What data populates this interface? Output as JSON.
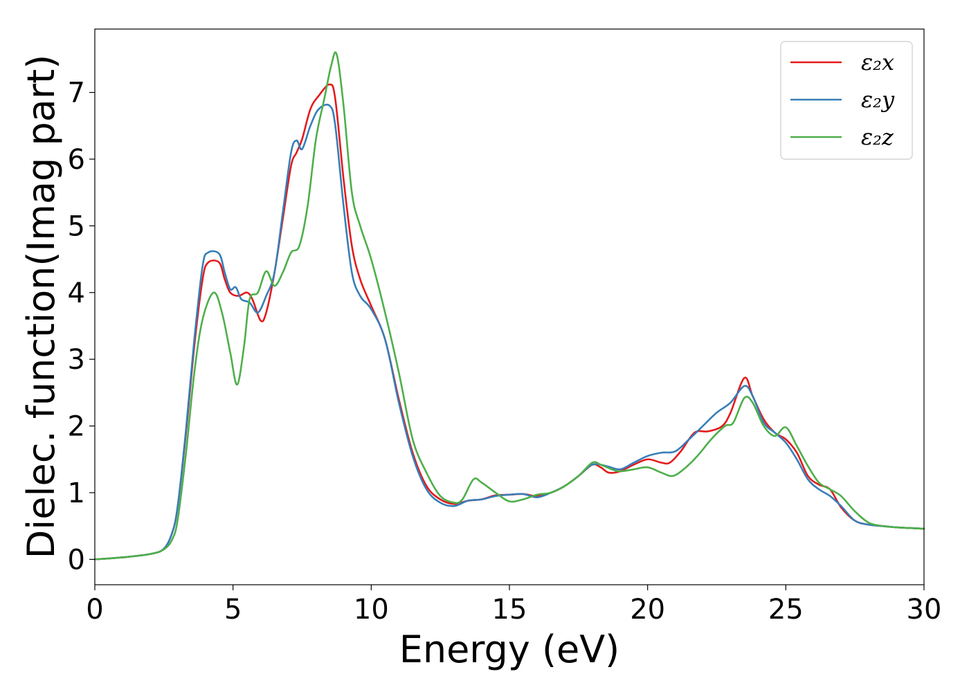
{
  "chart_data": {
    "type": "line",
    "title": "",
    "xlabel": "Energy (eV)",
    "ylabel": "Dielec. function(Imag part)",
    "xlim": [
      0,
      30
    ],
    "ylim": [
      -0.38,
      7.95
    ],
    "xticks": [
      0,
      5,
      10,
      15,
      20,
      25,
      30
    ],
    "yticks": [
      0,
      1,
      2,
      3,
      4,
      5,
      6,
      7
    ],
    "grid": false,
    "legend": {
      "placement": "top-right"
    },
    "series": [
      {
        "name": "ε₂x",
        "color": "#e41a1c",
        "x": [
          0,
          1,
          2,
          2.5,
          2.8,
          3,
          3.3,
          3.6,
          3.9,
          4.1,
          4.5,
          4.7,
          4.9,
          5.2,
          5.5,
          5.7,
          6.0,
          6.2,
          6.5,
          6.8,
          7.1,
          7.3,
          7.5,
          7.8,
          8.1,
          8.5,
          8.7,
          9.0,
          9.3,
          9.6,
          10.0,
          10.5,
          11.0,
          11.5,
          12.0,
          12.5,
          13.0,
          13.5,
          14.0,
          14.5,
          15.0,
          15.5,
          16.0,
          16.5,
          17.0,
          17.5,
          18.0,
          18.3,
          18.6,
          19.0,
          19.5,
          20.0,
          20.5,
          20.8,
          21.2,
          21.7,
          22.2,
          22.7,
          23.0,
          23.5,
          23.8,
          24.2,
          24.6,
          25.0,
          25.4,
          25.8,
          26.2,
          26.6,
          27.0,
          27.5,
          28.0,
          28.5,
          29.0,
          29.5,
          30.0
        ],
        "y": [
          0,
          0.03,
          0.08,
          0.16,
          0.4,
          0.8,
          1.9,
          3.2,
          4.2,
          4.45,
          4.45,
          4.2,
          4.0,
          3.95,
          4.0,
          3.9,
          3.58,
          3.7,
          4.3,
          5.1,
          5.9,
          6.1,
          6.3,
          6.75,
          6.95,
          7.12,
          6.9,
          5.7,
          4.7,
          4.2,
          3.8,
          3.3,
          2.4,
          1.6,
          1.1,
          0.9,
          0.83,
          0.88,
          0.9,
          0.96,
          0.97,
          0.98,
          0.95,
          1.0,
          1.1,
          1.25,
          1.42,
          1.38,
          1.3,
          1.32,
          1.42,
          1.5,
          1.45,
          1.45,
          1.62,
          1.9,
          1.92,
          2.0,
          2.2,
          2.72,
          2.45,
          2.1,
          1.9,
          1.8,
          1.6,
          1.25,
          1.12,
          1.05,
          0.78,
          0.58,
          0.52,
          0.5,
          0.48,
          0.47,
          0.46
        ]
      },
      {
        "name": "ε₂y",
        "color": "#377eb8",
        "x": [
          0,
          1,
          2,
          2.5,
          2.8,
          3,
          3.3,
          3.6,
          3.9,
          4.1,
          4.5,
          4.7,
          4.9,
          5.1,
          5.3,
          5.6,
          5.9,
          6.2,
          6.5,
          6.8,
          7.1,
          7.3,
          7.5,
          7.8,
          8.1,
          8.5,
          8.7,
          9.0,
          9.3,
          9.6,
          10.0,
          10.5,
          11.0,
          11.5,
          12.0,
          12.5,
          13.0,
          13.5,
          14.0,
          14.5,
          15.0,
          15.5,
          16.0,
          16.5,
          17.0,
          17.5,
          18.0,
          18.5,
          19.0,
          19.5,
          20.0,
          20.5,
          21.0,
          21.5,
          22.0,
          22.5,
          23.0,
          23.5,
          23.8,
          24.2,
          24.6,
          25.0,
          25.4,
          25.8,
          26.2,
          26.6,
          27.0,
          27.5,
          28.0,
          28.5,
          29.0,
          29.5,
          30.0
        ],
        "y": [
          0,
          0.03,
          0.08,
          0.16,
          0.4,
          0.8,
          1.95,
          3.3,
          4.4,
          4.6,
          4.58,
          4.3,
          4.05,
          4.08,
          3.9,
          3.85,
          3.7,
          3.95,
          4.3,
          5.2,
          6.1,
          6.28,
          6.15,
          6.5,
          6.75,
          6.8,
          6.5,
          5.3,
          4.3,
          3.95,
          3.75,
          3.3,
          2.35,
          1.55,
          1.05,
          0.85,
          0.8,
          0.88,
          0.9,
          0.95,
          0.97,
          0.98,
          0.93,
          1.0,
          1.1,
          1.25,
          1.42,
          1.4,
          1.35,
          1.45,
          1.55,
          1.6,
          1.62,
          1.8,
          2.0,
          2.2,
          2.35,
          2.6,
          2.45,
          2.05,
          1.9,
          1.75,
          1.5,
          1.2,
          1.05,
          0.95,
          0.8,
          0.58,
          0.52,
          0.5,
          0.48,
          0.47,
          0.46
        ]
      },
      {
        "name": "ε₂z",
        "color": "#4daf4a",
        "x": [
          0,
          1,
          2,
          2.5,
          2.8,
          3,
          3.3,
          3.6,
          3.9,
          4.3,
          4.6,
          4.9,
          5.15,
          5.4,
          5.6,
          5.9,
          6.2,
          6.5,
          6.8,
          7.1,
          7.4,
          7.7,
          8.0,
          8.3,
          8.55,
          8.75,
          9.0,
          9.3,
          9.6,
          10.0,
          10.5,
          11.0,
          11.5,
          12.0,
          12.5,
          13.0,
          13.3,
          13.7,
          14.0,
          14.5,
          15.0,
          15.5,
          16.0,
          16.5,
          17.0,
          17.5,
          18.0,
          18.3,
          18.7,
          19.0,
          19.5,
          20.0,
          20.5,
          20.9,
          21.3,
          21.8,
          22.3,
          22.8,
          23.1,
          23.5,
          23.8,
          24.2,
          24.6,
          25.0,
          25.4,
          25.8,
          26.2,
          26.6,
          27.0,
          27.5,
          28.0,
          28.5,
          29.0,
          29.5,
          30.0
        ],
        "y": [
          0,
          0.03,
          0.08,
          0.15,
          0.3,
          0.6,
          1.6,
          2.8,
          3.6,
          4.0,
          3.7,
          3.1,
          2.62,
          3.2,
          3.9,
          4.0,
          4.32,
          4.1,
          4.3,
          4.6,
          4.7,
          5.3,
          6.3,
          6.9,
          7.4,
          7.57,
          6.8,
          5.5,
          5.0,
          4.5,
          3.7,
          2.8,
          1.8,
          1.3,
          0.95,
          0.85,
          0.9,
          1.2,
          1.15,
          1.0,
          0.87,
          0.9,
          0.97,
          1.0,
          1.1,
          1.25,
          1.45,
          1.42,
          1.35,
          1.32,
          1.35,
          1.38,
          1.3,
          1.25,
          1.35,
          1.55,
          1.8,
          2.0,
          2.05,
          2.42,
          2.35,
          2.0,
          1.85,
          1.98,
          1.7,
          1.4,
          1.15,
          1.05,
          0.95,
          0.72,
          0.55,
          0.5,
          0.48,
          0.47,
          0.46
        ]
      }
    ]
  }
}
